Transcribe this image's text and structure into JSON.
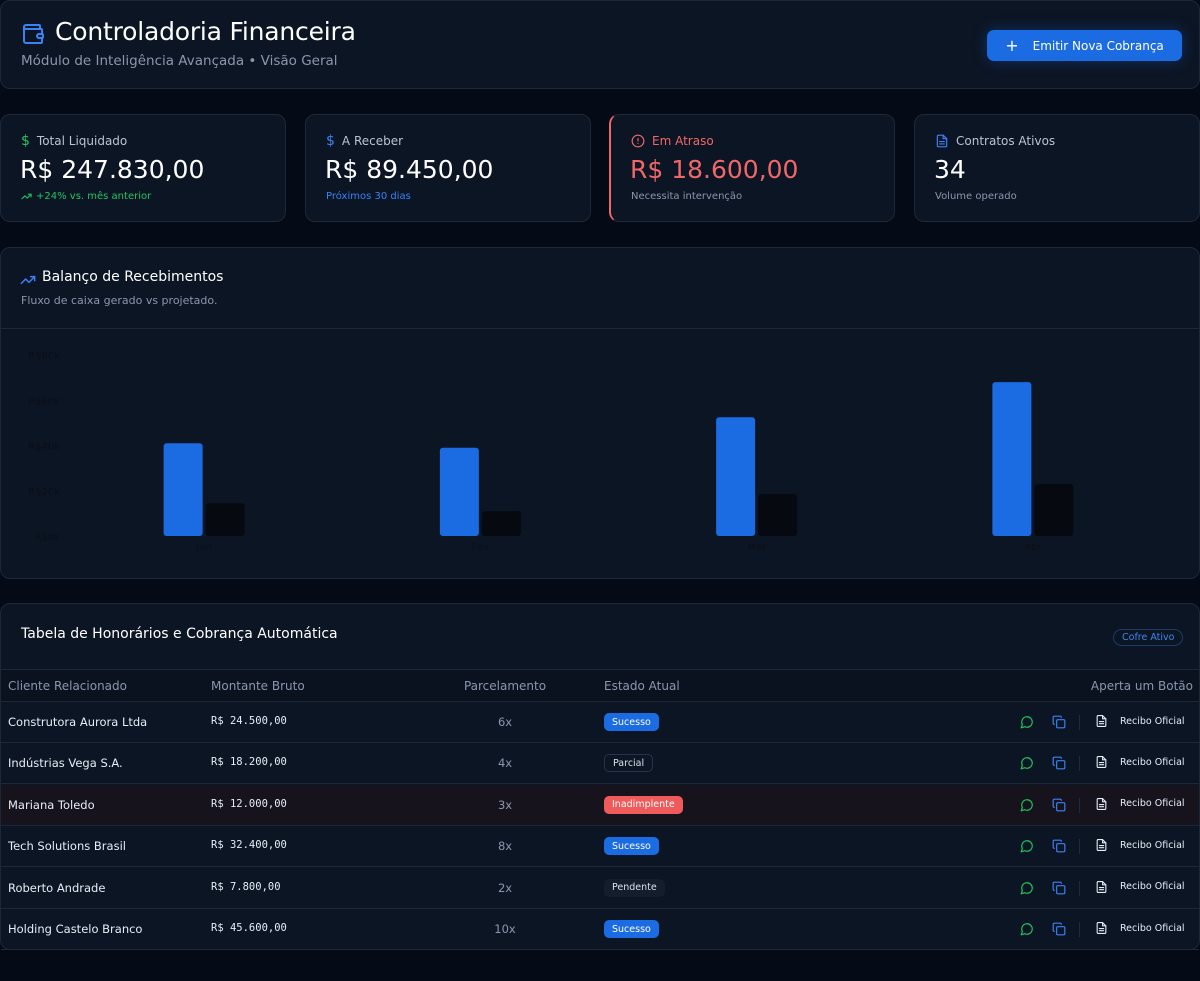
{
  "header": {
    "title": "Controladoria Financeira",
    "subtitle": "Módulo de Inteligência Avançada • Visão Geral",
    "primary_button": "Emitir Nova Cobrança"
  },
  "stats": [
    {
      "icon": "dollar-icon",
      "label": "Total Liquidado",
      "value": "R$ 247.830,00",
      "footer": "+24% vs. mês anterior",
      "footer_color": "#22c55e"
    },
    {
      "icon": "dollar-icon",
      "label": "A Receber",
      "value": "R$ 89.450,00",
      "footer": "Próximos 30 dias",
      "footer_color": "#3b82f6"
    },
    {
      "icon": "alert-circle-icon",
      "label": "Em Atraso",
      "value": "R$ 18.600,00",
      "footer": "Necessita intervenção",
      "color": "#f06767"
    },
    {
      "icon": "file-icon",
      "label": "Contratos Ativos",
      "value": "34",
      "footer": "Volume operado"
    }
  ],
  "chart": {
    "title": "Balanço de Recebimentos",
    "subtitle": "Fluxo de caixa gerado vs projetado."
  },
  "chart_data": {
    "type": "bar",
    "categories": [
      "Jan",
      "Fev",
      "Mar",
      "Abr"
    ],
    "series": [
      {
        "values": [
          41000,
          39000,
          52500,
          68000
        ],
        "color": "#1b6be3"
      },
      {
        "values": [
          14500,
          11000,
          18500,
          23000
        ],
        "color": "#060a10"
      }
    ],
    "ytick_labels": [
      "R$0k",
      "R$20k",
      "R$40k",
      "R$60k",
      "R$80k"
    ],
    "ylim": [
      0,
      80000
    ],
    "grid": false
  },
  "table": {
    "title": "Tabela de Honorários e Cobrança Automática",
    "badge": "Cofre Ativo",
    "columns": [
      "Cliente Relacionado",
      "Montante Bruto",
      "Parcelamento",
      "Estado Atual",
      "Aperta um Botão"
    ],
    "receipt_label": "Recibo Oficial",
    "rows": [
      {
        "client": "Construtora Aurora Ltda",
        "amount": "R$ 24.500,00",
        "installments": "6x",
        "status": "Sucesso",
        "kind": "ok"
      },
      {
        "client": "Indústrias Vega S.A.",
        "amount": "R$ 18.200,00",
        "installments": "4x",
        "status": "Parcial",
        "kind": "partial"
      },
      {
        "client": "Mariana Toledo",
        "amount": "R$ 12.000,00",
        "installments": "3x",
        "status": "Inadimplente",
        "kind": "bad"
      },
      {
        "client": "Tech Solutions Brasil",
        "amount": "R$ 32.400,00",
        "installments": "8x",
        "status": "Sucesso",
        "kind": "ok"
      },
      {
        "client": "Roberto Andrade",
        "amount": "R$ 7.800,00",
        "installments": "2x",
        "status": "Pendente",
        "kind": "pending"
      },
      {
        "client": "Holding Castelo Branco",
        "amount": "R$ 45.600,00",
        "installments": "10x",
        "status": "Sucesso",
        "kind": "ok"
      }
    ]
  }
}
